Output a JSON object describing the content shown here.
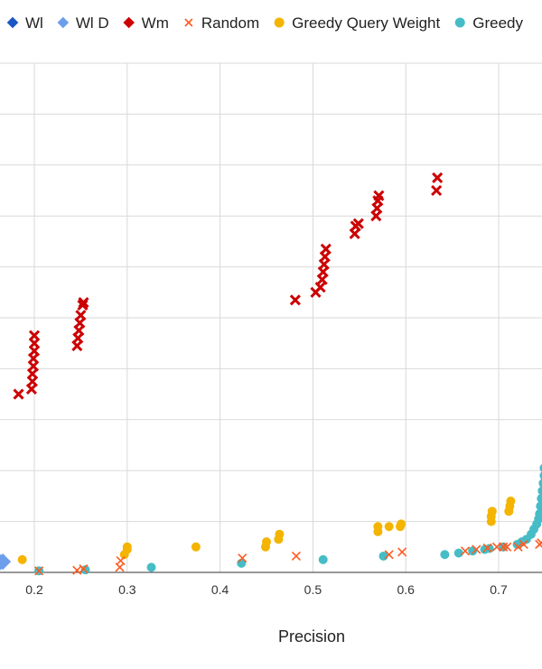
{
  "chart_data": {
    "type": "scatter",
    "title": "",
    "xlabel": "Precision",
    "ylabel": "",
    "xlim": [
      0.16,
      0.75
    ],
    "ylim": [
      0,
      10
    ],
    "x_ticks": [
      "0.2",
      "0.3",
      "0.4",
      "0.5",
      "0.6",
      "0.7"
    ],
    "y_gridlines": [
      1,
      2,
      3,
      4,
      5,
      6,
      7,
      8,
      9,
      10
    ],
    "grid": true,
    "legend_position": "top",
    "series": [
      {
        "name": "Wl",
        "marker": "diamond",
        "color": "#1a56c4",
        "points": []
      },
      {
        "name": "Wl D",
        "marker": "diamond",
        "color": "#6d9eeb",
        "points": [
          {
            "x": 0.163,
            "y": 0.2
          },
          {
            "x": 0.166,
            "y": 0.21
          }
        ]
      },
      {
        "name": "Wm",
        "marker": "diamond-x",
        "color": "#cc0000",
        "points": [
          {
            "x": 0.183,
            "y": 3.5
          },
          {
            "x": 0.197,
            "y": 3.6
          },
          {
            "x": 0.198,
            "y": 3.75
          },
          {
            "x": 0.198,
            "y": 3.9
          },
          {
            "x": 0.199,
            "y": 4.05
          },
          {
            "x": 0.199,
            "y": 4.2
          },
          {
            "x": 0.2,
            "y": 4.35
          },
          {
            "x": 0.2,
            "y": 4.5
          },
          {
            "x": 0.2,
            "y": 4.65
          },
          {
            "x": 0.246,
            "y": 4.45
          },
          {
            "x": 0.247,
            "y": 4.6
          },
          {
            "x": 0.248,
            "y": 4.75
          },
          {
            "x": 0.249,
            "y": 4.9
          },
          {
            "x": 0.25,
            "y": 5.05
          },
          {
            "x": 0.252,
            "y": 5.25
          },
          {
            "x": 0.253,
            "y": 5.3
          },
          {
            "x": 0.481,
            "y": 5.35
          },
          {
            "x": 0.503,
            "y": 5.5
          },
          {
            "x": 0.508,
            "y": 5.6
          },
          {
            "x": 0.51,
            "y": 5.75
          },
          {
            "x": 0.511,
            "y": 5.9
          },
          {
            "x": 0.512,
            "y": 6.05
          },
          {
            "x": 0.513,
            "y": 6.2
          },
          {
            "x": 0.514,
            "y": 6.35
          },
          {
            "x": 0.545,
            "y": 6.65
          },
          {
            "x": 0.546,
            "y": 6.8
          },
          {
            "x": 0.549,
            "y": 6.85
          },
          {
            "x": 0.568,
            "y": 7.0
          },
          {
            "x": 0.569,
            "y": 7.15
          },
          {
            "x": 0.57,
            "y": 7.3
          },
          {
            "x": 0.571,
            "y": 7.4
          },
          {
            "x": 0.633,
            "y": 7.5
          },
          {
            "x": 0.634,
            "y": 7.75
          }
        ]
      },
      {
        "name": "Random",
        "marker": "x",
        "color": "#ff5a1f",
        "points": [
          {
            "x": 0.205,
            "y": 0.03
          },
          {
            "x": 0.246,
            "y": 0.04
          },
          {
            "x": 0.253,
            "y": 0.07
          },
          {
            "x": 0.292,
            "y": 0.1
          },
          {
            "x": 0.293,
            "y": 0.23
          },
          {
            "x": 0.424,
            "y": 0.28
          },
          {
            "x": 0.482,
            "y": 0.32
          },
          {
            "x": 0.582,
            "y": 0.35
          },
          {
            "x": 0.596,
            "y": 0.4
          },
          {
            "x": 0.664,
            "y": 0.42
          },
          {
            "x": 0.676,
            "y": 0.45
          },
          {
            "x": 0.688,
            "y": 0.48
          },
          {
            "x": 0.698,
            "y": 0.5
          },
          {
            "x": 0.705,
            "y": 0.5
          },
          {
            "x": 0.709,
            "y": 0.5
          },
          {
            "x": 0.721,
            "y": 0.5
          },
          {
            "x": 0.727,
            "y": 0.55
          },
          {
            "x": 0.744,
            "y": 0.55
          },
          {
            "x": 0.746,
            "y": 0.58
          }
        ]
      },
      {
        "name": "Greedy Query Weight",
        "marker": "circle",
        "color": "#f4b400",
        "points": [
          {
            "x": 0.187,
            "y": 0.25
          },
          {
            "x": 0.297,
            "y": 0.35
          },
          {
            "x": 0.3,
            "y": 0.45
          },
          {
            "x": 0.3,
            "y": 0.5
          },
          {
            "x": 0.374,
            "y": 0.5
          },
          {
            "x": 0.449,
            "y": 0.5
          },
          {
            "x": 0.45,
            "y": 0.6
          },
          {
            "x": 0.463,
            "y": 0.65
          },
          {
            "x": 0.464,
            "y": 0.75
          },
          {
            "x": 0.57,
            "y": 0.8
          },
          {
            "x": 0.57,
            "y": 0.9
          },
          {
            "x": 0.582,
            "y": 0.9
          },
          {
            "x": 0.594,
            "y": 0.9
          },
          {
            "x": 0.595,
            "y": 0.95
          },
          {
            "x": 0.692,
            "y": 1.0
          },
          {
            "x": 0.692,
            "y": 1.1
          },
          {
            "x": 0.693,
            "y": 1.2
          },
          {
            "x": 0.711,
            "y": 1.2
          },
          {
            "x": 0.712,
            "y": 1.3
          },
          {
            "x": 0.713,
            "y": 1.4
          }
        ]
      },
      {
        "name": "Greedy",
        "marker": "circle",
        "color": "#46bdc6",
        "points": [
          {
            "x": 0.205,
            "y": 0.03
          },
          {
            "x": 0.255,
            "y": 0.05
          },
          {
            "x": 0.326,
            "y": 0.1
          },
          {
            "x": 0.423,
            "y": 0.18
          },
          {
            "x": 0.511,
            "y": 0.25
          },
          {
            "x": 0.576,
            "y": 0.32
          },
          {
            "x": 0.642,
            "y": 0.35
          },
          {
            "x": 0.657,
            "y": 0.38
          },
          {
            "x": 0.672,
            "y": 0.42
          },
          {
            "x": 0.685,
            "y": 0.45
          },
          {
            "x": 0.69,
            "y": 0.47
          },
          {
            "x": 0.705,
            "y": 0.5
          },
          {
            "x": 0.72,
            "y": 0.55
          },
          {
            "x": 0.725,
            "y": 0.6
          },
          {
            "x": 0.73,
            "y": 0.65
          },
          {
            "x": 0.735,
            "y": 0.75
          },
          {
            "x": 0.738,
            "y": 0.85
          },
          {
            "x": 0.741,
            "y": 0.95
          },
          {
            "x": 0.743,
            "y": 1.05
          },
          {
            "x": 0.744,
            "y": 1.15
          },
          {
            "x": 0.745,
            "y": 1.3
          },
          {
            "x": 0.746,
            "y": 1.45
          },
          {
            "x": 0.747,
            "y": 1.6
          },
          {
            "x": 0.748,
            "y": 1.75
          },
          {
            "x": 0.749,
            "y": 1.9
          },
          {
            "x": 0.749,
            "y": 2.05
          }
        ]
      }
    ]
  }
}
